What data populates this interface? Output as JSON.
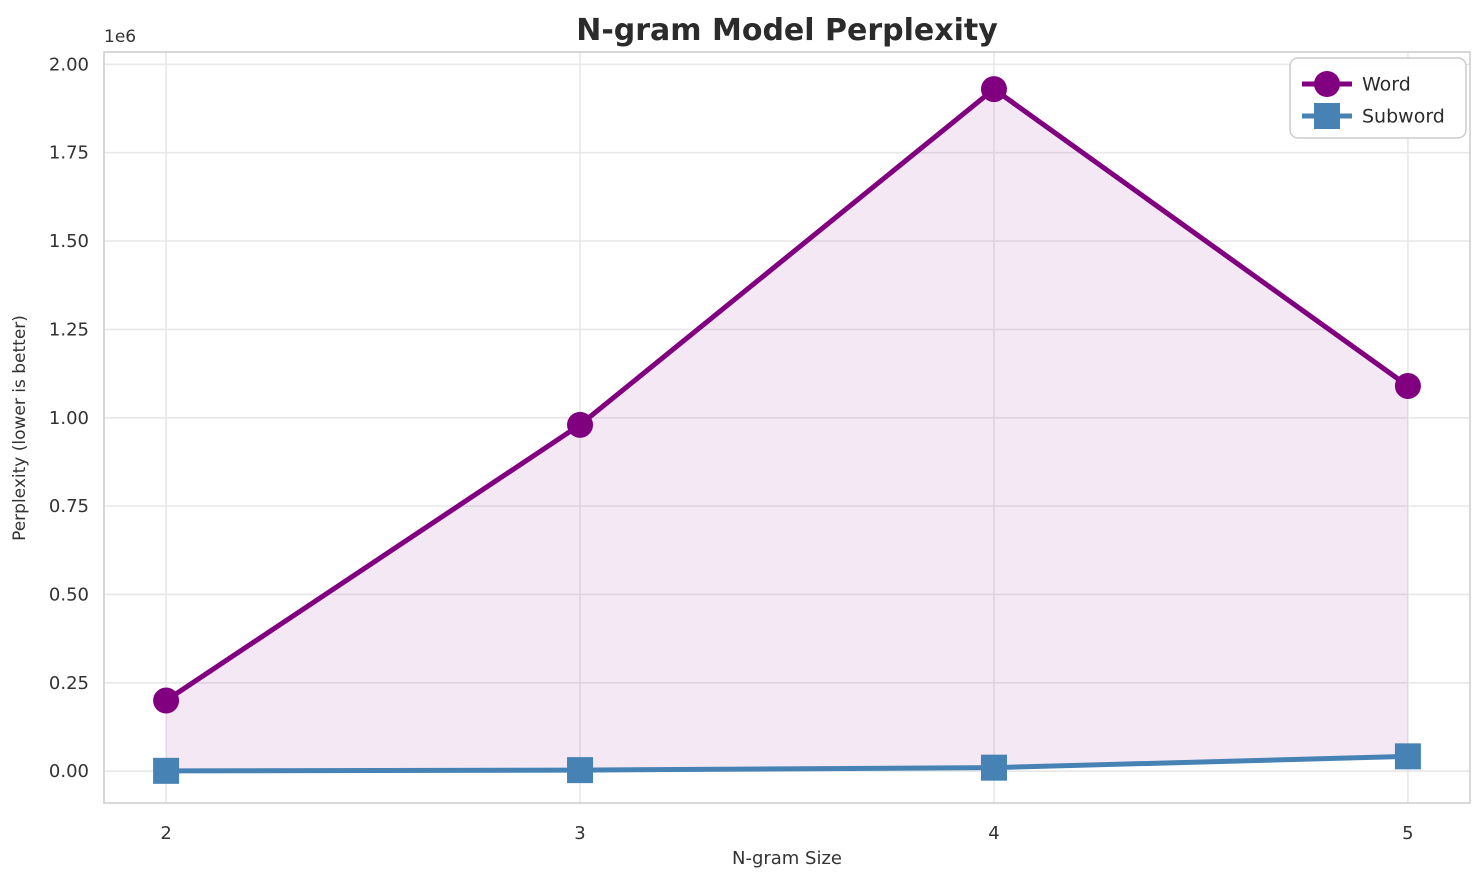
{
  "chart_data": {
    "type": "line",
    "title": "N-gram Model Perplexity",
    "xlabel": "N-gram Size",
    "ylabel": "Perplexity (lower is better)",
    "y_offset_label": "1e6",
    "x": [
      2,
      3,
      4,
      5
    ],
    "x_tick_labels": [
      "2",
      "3",
      "4",
      "5"
    ],
    "series": [
      {
        "name": "Word",
        "marker": "circle",
        "color": "#800080",
        "values": [
          200000,
          980000,
          1930000,
          1090000
        ]
      },
      {
        "name": "Subword",
        "marker": "square",
        "color": "#4682B4",
        "values": [
          1000,
          3000,
          10000,
          42000
        ]
      }
    ],
    "fill_between": {
      "between": [
        "Word",
        "Subword"
      ],
      "color": "#800080",
      "opacity": 0.09
    },
    "xlim": [
      1.85,
      5.15
    ],
    "ylim": [
      -90000,
      2035000
    ],
    "yticks": [
      0,
      250000,
      500000,
      750000,
      1000000,
      1250000,
      1500000,
      1750000,
      2000000
    ],
    "ytick_labels": [
      "0.00",
      "0.25",
      "0.50",
      "0.75",
      "1.00",
      "1.25",
      "1.50",
      "1.75",
      "2.00"
    ],
    "grid": true,
    "legend": {
      "position": "upper right",
      "entries": [
        "Word",
        "Subword"
      ]
    }
  },
  "colors": {
    "word": "#800080",
    "subword": "#4682B4",
    "grid": "#e8e8e8",
    "spine": "#cccccc",
    "text": "#333333",
    "title": "#2b2b2b",
    "background": "#ffffff"
  }
}
